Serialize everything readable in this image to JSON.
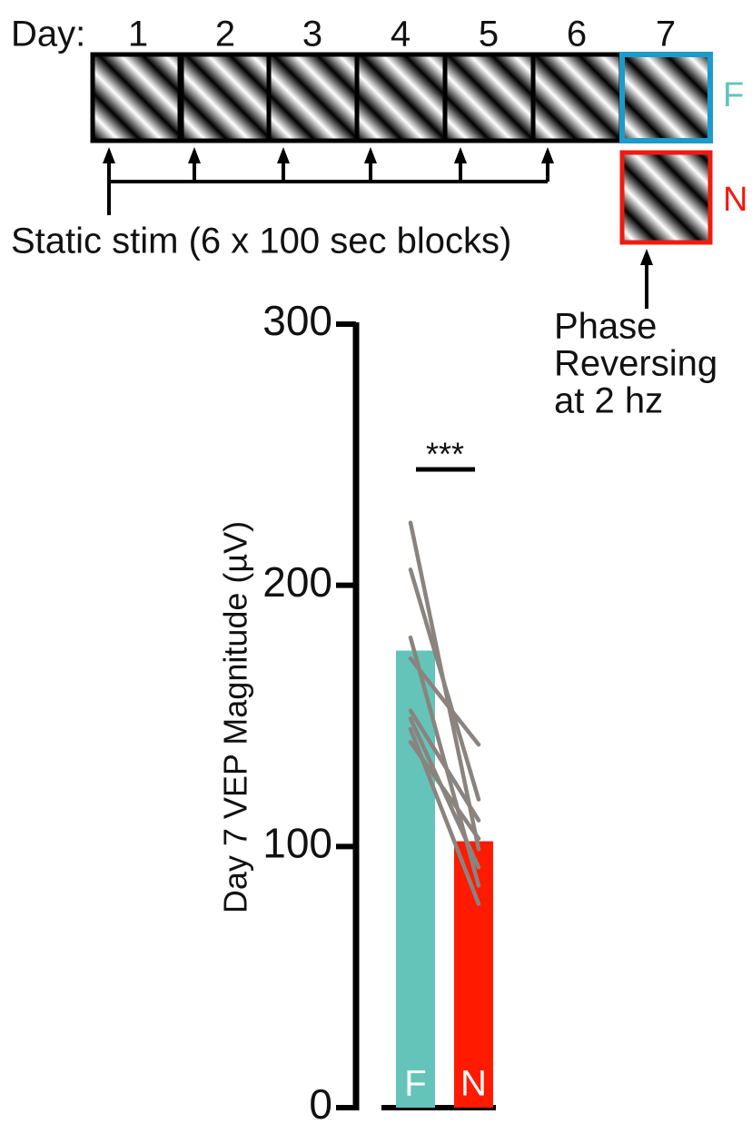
{
  "diagram": {
    "day_label": "Day:",
    "days": [
      "1",
      "2",
      "3",
      "4",
      "5",
      "6",
      "7"
    ],
    "familiar_label": "F",
    "novel_label": "N",
    "static_label": "Static stim (6 x 100 sec blocks)",
    "phase_label": [
      "Phase",
      "Reversing",
      "at 2 hz"
    ]
  },
  "chart_data": {
    "type": "bar",
    "ylabel": "Day 7 VEP Magnitude (µV)",
    "categories": [
      "F",
      "N"
    ],
    "values": [
      175,
      102
    ],
    "colors": [
      "#64c4b9",
      "#ff1a00"
    ],
    "paired": [
      [
        224,
        99
      ],
      [
        206,
        118
      ],
      [
        180,
        85
      ],
      [
        172,
        139
      ],
      [
        152,
        110
      ],
      [
        149,
        92
      ],
      [
        145,
        78
      ],
      [
        140,
        103
      ]
    ],
    "paired_color": "#8a837e",
    "significance": "***",
    "ylim": [
      0,
      300
    ],
    "yticks": [
      0,
      100,
      200,
      300
    ]
  }
}
